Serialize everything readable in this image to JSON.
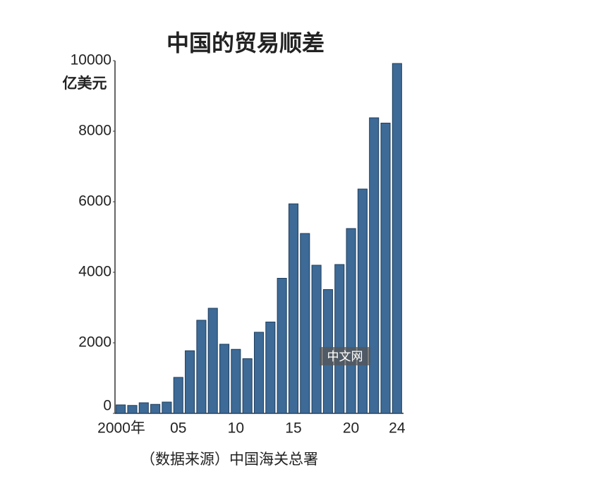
{
  "chart_data": {
    "type": "bar",
    "title": "中国的贸易顺差",
    "y_label": "亿美元",
    "source": "（数据来源）中国海关总署",
    "watermark": "中文网",
    "categories": [
      "2000年",
      null,
      null,
      null,
      null,
      "05",
      null,
      null,
      null,
      null,
      "10",
      null,
      null,
      null,
      null,
      "15",
      null,
      null,
      null,
      null,
      "20",
      null,
      null,
      null,
      "24"
    ],
    "values": [
      240,
      225,
      300,
      255,
      320,
      1020,
      1775,
      2640,
      2980,
      1960,
      1815,
      1550,
      2300,
      2590,
      3830,
      5940,
      5100,
      4200,
      3510,
      4220,
      5240,
      6360,
      8380,
      8230,
      9920
    ],
    "color": "#3d6a96",
    "ylim": [
      0,
      10000
    ],
    "yticks": [
      0,
      2000,
      4000,
      6000,
      8000,
      10000
    ],
    "grid": false
  }
}
